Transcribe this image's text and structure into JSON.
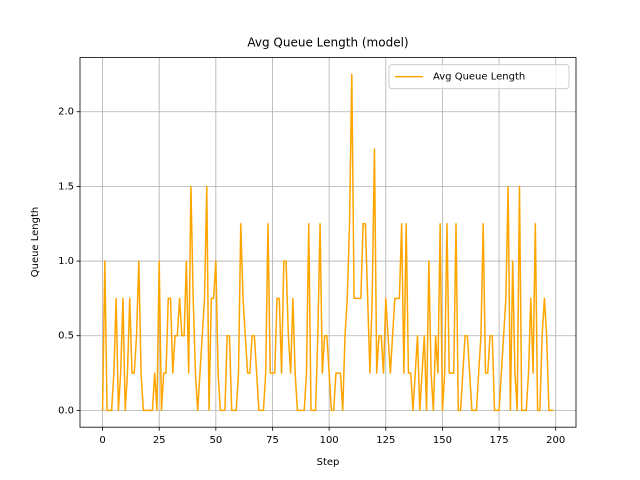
{
  "chart_data": {
    "type": "line",
    "title": "Avg Queue Length (model)",
    "x_label": "Step",
    "y_label": "Queue Length",
    "x": [
      0,
      1,
      2,
      3,
      4,
      5,
      6,
      7,
      8,
      9,
      10,
      11,
      12,
      13,
      14,
      15,
      16,
      17,
      18,
      19,
      20,
      21,
      22,
      23,
      24,
      25,
      26,
      27,
      28,
      29,
      30,
      31,
      32,
      33,
      34,
      35,
      36,
      37,
      38,
      39,
      40,
      41,
      42,
      43,
      44,
      45,
      46,
      47,
      48,
      49,
      50,
      51,
      52,
      53,
      54,
      55,
      56,
      57,
      58,
      59,
      60,
      61,
      62,
      63,
      64,
      65,
      66,
      67,
      68,
      69,
      70,
      71,
      72,
      73,
      74,
      75,
      76,
      77,
      78,
      79,
      80,
      81,
      82,
      83,
      84,
      85,
      86,
      87,
      88,
      89,
      90,
      91,
      92,
      93,
      94,
      95,
      96,
      97,
      98,
      99,
      100,
      101,
      102,
      103,
      104,
      105,
      106,
      107,
      108,
      109,
      110,
      111,
      112,
      113,
      114,
      115,
      116,
      117,
      118,
      119,
      120,
      121,
      122,
      123,
      124,
      125,
      126,
      127,
      128,
      129,
      130,
      131,
      132,
      133,
      134,
      135,
      136,
      137,
      138,
      139,
      140,
      141,
      142,
      143,
      144,
      145,
      146,
      147,
      148,
      149,
      150,
      151,
      152,
      153,
      154,
      155,
      156,
      157,
      158,
      159,
      160,
      161,
      162,
      163,
      164,
      165,
      166,
      167,
      168,
      169,
      170,
      171,
      172,
      173,
      174,
      175,
      176,
      177,
      178,
      179,
      180,
      181,
      182,
      183,
      184,
      185,
      186,
      187,
      188,
      189,
      190,
      191,
      192,
      193,
      194,
      195,
      196,
      197,
      198,
      199
    ],
    "series": [
      {
        "name": "Avg Queue Length",
        "color": "#ffa500",
        "values": [
          0,
          1,
          0,
          0,
          0,
          0.25,
          0.75,
          0,
          0.25,
          0.75,
          0,
          0.25,
          0.75,
          0.25,
          0.25,
          0.5,
          1,
          0.25,
          0,
          0,
          0,
          0,
          0,
          0.25,
          0,
          1,
          0,
          0.25,
          0.25,
          0.75,
          0.75,
          0.25,
          0.5,
          0.5,
          0.75,
          0.5,
          0.5,
          1,
          0.25,
          1.5,
          0.75,
          0.25,
          0,
          0.25,
          0.5,
          0.75,
          1.5,
          0,
          0.75,
          0.75,
          1,
          0.25,
          0,
          0,
          0,
          0.5,
          0.5,
          0,
          0,
          0,
          0.25,
          1.25,
          0.75,
          0.5,
          0.25,
          0.25,
          0.5,
          0.5,
          0.25,
          0,
          0,
          0,
          0.25,
          1.25,
          0.25,
          0.25,
          0.25,
          0.75,
          0.75,
          0.25,
          1,
          1,
          0.5,
          0.25,
          0.75,
          0.25,
          0,
          0,
          0,
          0,
          0.25,
          1.25,
          0,
          0,
          0,
          0.5,
          1.25,
          0.25,
          0.5,
          0.5,
          0.25,
          0,
          0,
          0.25,
          0.25,
          0.25,
          0,
          0.5,
          0.75,
          1.25,
          2.25,
          0.75,
          0.75,
          0.75,
          0.75,
          1.25,
          1.25,
          0.75,
          0.25,
          0.75,
          1.75,
          0.25,
          0.5,
          0.5,
          0.25,
          0.75,
          0.5,
          0.25,
          0.5,
          0.75,
          0.75,
          0.75,
          1.25,
          0.25,
          1.25,
          0.25,
          0.25,
          0,
          0.25,
          0.5,
          0,
          0.25,
          0.5,
          0,
          1,
          0.25,
          0,
          0.5,
          0.25,
          1.25,
          0,
          0.25,
          1.25,
          0.25,
          0.25,
          0.25,
          1.25,
          0,
          0,
          0.25,
          0.5,
          0.5,
          0.25,
          0,
          0,
          0,
          0.25,
          0.5,
          1.25,
          0.25,
          0.25,
          0.5,
          0.5,
          0,
          0,
          0,
          0.25,
          0.5,
          0.75,
          1.5,
          0,
          1,
          0.25,
          0,
          1.5,
          0,
          0,
          0,
          0.25,
          0.75,
          0.25,
          1.25,
          0,
          0,
          0.5,
          0.75,
          0.5,
          0,
          0,
          0
        ]
      }
    ],
    "xlim": [
      -9.95,
      208.95
    ],
    "xticks": [
      0,
      25,
      50,
      75,
      100,
      125,
      150,
      175,
      200
    ],
    "ylim": [
      -0.1125,
      2.3625
    ],
    "yticks": [
      {
        "value": 0,
        "label": "0.0"
      },
      0.5,
      {
        "value": 1,
        "label": "1.0"
      },
      1.5,
      {
        "value": 2,
        "label": "2.0"
      }
    ],
    "grid": true,
    "legend": "upper right"
  }
}
